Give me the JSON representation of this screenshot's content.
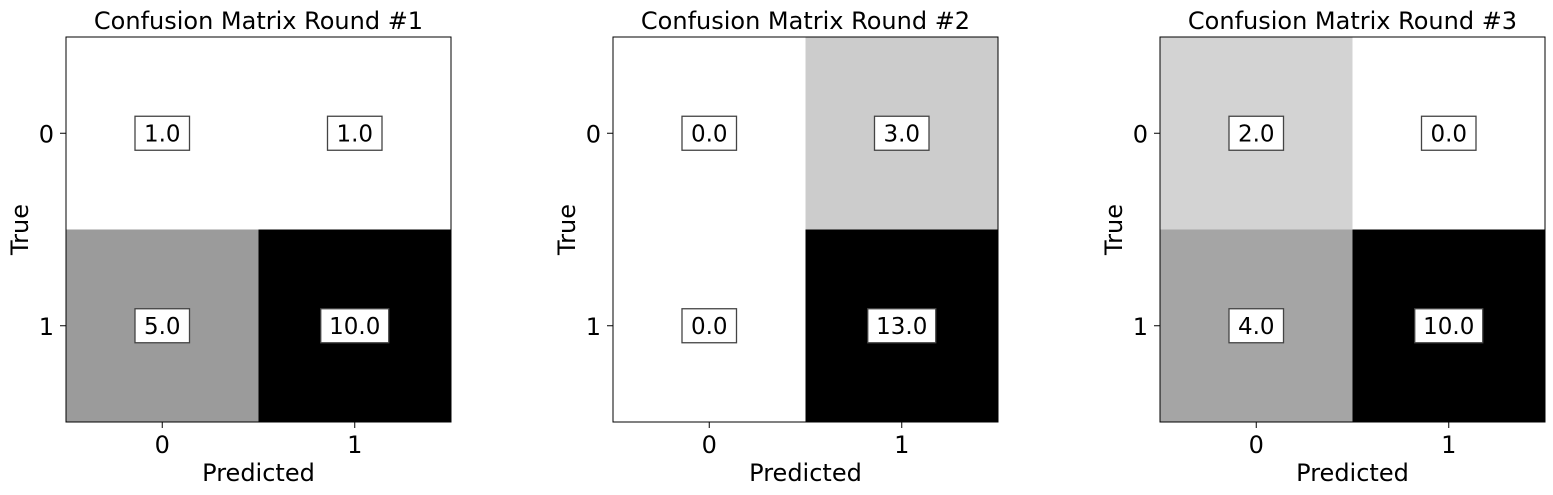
{
  "chart_data": [
    {
      "type": "heatmap",
      "title": "Confusion Matrix Round #1",
      "xlabel": "Predicted",
      "ylabel": "True",
      "x_categories": [
        "0",
        "1"
      ],
      "y_categories": [
        "0",
        "1"
      ],
      "colormap": "Greys",
      "values": [
        [
          1,
          1
        ],
        [
          5,
          10
        ]
      ],
      "value_labels": [
        [
          "1.0",
          "1.0"
        ],
        [
          "5.0",
          "10.0"
        ]
      ],
      "grid": false
    },
    {
      "type": "heatmap",
      "title": "Confusion Matrix Round #2",
      "xlabel": "Predicted",
      "ylabel": "True",
      "x_categories": [
        "0",
        "1"
      ],
      "y_categories": [
        "0",
        "1"
      ],
      "colormap": "Greys",
      "values": [
        [
          0,
          3
        ],
        [
          0,
          13
        ]
      ],
      "value_labels": [
        [
          "0.0",
          "3.0"
        ],
        [
          "0.0",
          "13.0"
        ]
      ],
      "grid": false
    },
    {
      "type": "heatmap",
      "title": "Confusion Matrix Round #3",
      "xlabel": "Predicted",
      "ylabel": "True",
      "x_categories": [
        "0",
        "1"
      ],
      "y_categories": [
        "0",
        "1"
      ],
      "colormap": "Greys",
      "values": [
        [
          2,
          0
        ],
        [
          4,
          10
        ]
      ],
      "value_labels": [
        [
          "2.0",
          "0.0"
        ],
        [
          "4.0",
          "10.0"
        ]
      ],
      "grid": false
    }
  ]
}
